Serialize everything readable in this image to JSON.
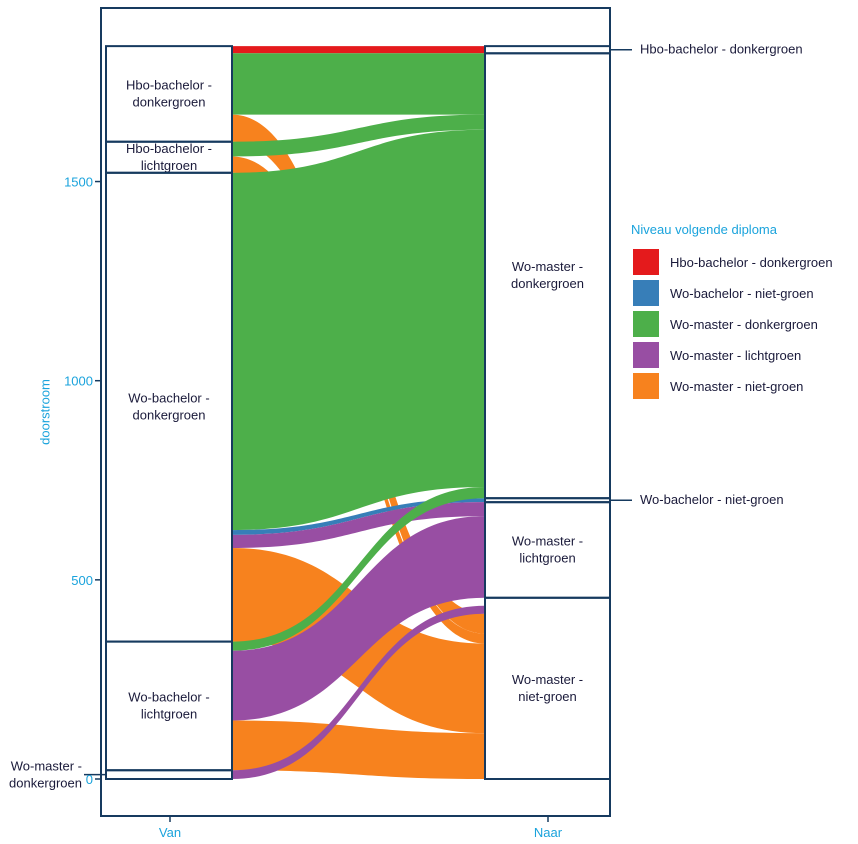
{
  "chart_data": {
    "type": "alluvial",
    "ylabel": "doorstroom",
    "x_axes": [
      "Van",
      "Naar"
    ],
    "yticks": [
      0,
      500,
      1000,
      1500
    ],
    "ylim": [
      -80,
      1910
    ],
    "legend": {
      "title": "Niveau volgende diploma",
      "position": "right",
      "entries": [
        {
          "label": "Hbo-bachelor - donkergroen",
          "color": "#e41a1c"
        },
        {
          "label": "Wo-bachelor - niet-groen",
          "color": "#377eb8"
        },
        {
          "label": "Wo-master - donkergroen",
          "color": "#4daf4a"
        },
        {
          "label": "Wo-master - lichtgroen",
          "color": "#984ea3"
        },
        {
          "label": "Wo-master - niet-groen",
          "color": "#f7821e"
        }
      ]
    },
    "left_strata": [
      {
        "id": "hd",
        "label": "Hbo-bachelor - donkergroen",
        "label_lines": [
          "Hbo-bachelor -",
          "donkergroen"
        ],
        "low": 1600,
        "high": 1840,
        "external": false
      },
      {
        "id": "hl",
        "label": "Hbo-bachelor - lichtgroen",
        "label_lines": [
          "Hbo-bachelor -",
          "lichtgroen"
        ],
        "low": 1522,
        "high": 1600,
        "external": false
      },
      {
        "id": "wd",
        "label": "Wo-bachelor - donkergroen",
        "label_lines": [
          "Wo-bachelor -",
          "donkergroen"
        ],
        "low": 345,
        "high": 1522,
        "external": false
      },
      {
        "id": "wl",
        "label": "Wo-bachelor - lichtgroen",
        "label_lines": [
          "Wo-bachelor -",
          "lichtgroen"
        ],
        "low": 22,
        "high": 345,
        "external": false
      },
      {
        "id": "md",
        "label": "Wo-master - donkergroen",
        "label_lines": [
          "Wo-master -",
          "donkergroen"
        ],
        "low": 0,
        "high": 22,
        "external": true
      }
    ],
    "right_strata": [
      {
        "id": "rh",
        "label": "Hbo-bachelor - donkergroen",
        "label_lines": [
          "Hbo-bachelor - donkergroen"
        ],
        "low": 1822,
        "high": 1840,
        "external": true
      },
      {
        "id": "rm",
        "label": "Wo-master - donkergroen",
        "label_lines": [
          "Wo-master -",
          "donkergroen"
        ],
        "low": 705,
        "high": 1822,
        "external": false
      },
      {
        "id": "rb",
        "label": "Wo-bachelor - niet-groen",
        "label_lines": [
          "Wo-bachelor - niet-groen"
        ],
        "low": 695,
        "high": 705,
        "external": true
      },
      {
        "id": "rl",
        "label": "Wo-master - lichtgroen",
        "label_lines": [
          "Wo-master -",
          "lichtgroen"
        ],
        "low": 455,
        "high": 695,
        "external": false
      },
      {
        "id": "rn",
        "label": "Wo-master - niet-groen",
        "label_lines": [
          "Wo-master -",
          "niet-groen"
        ],
        "low": 0,
        "high": 455,
        "external": false
      }
    ],
    "flows": [
      {
        "from": "Hbo-bachelor - donkergroen",
        "to": "Hbo-bachelor - donkergroen",
        "color": "#e41a1c",
        "from_low": 1822,
        "from_high": 1840,
        "to_low": 1822,
        "to_high": 1840
      },
      {
        "from": "Hbo-bachelor - donkergroen",
        "to": "Wo-master - donkergroen",
        "color": "#4daf4a",
        "from_low": 1668,
        "from_high": 1822,
        "to_low": 1668,
        "to_high": 1822
      },
      {
        "from": "Hbo-bachelor - donkergroen",
        "to": "Wo-master - niet-groen",
        "color": "#f7821e",
        "from_low": 1600,
        "from_high": 1668,
        "to_low": 365,
        "to_high": 415
      },
      {
        "from": "Hbo-bachelor - lichtgroen",
        "to": "Wo-master - donkergroen",
        "color": "#4daf4a",
        "from_low": 1563,
        "from_high": 1600,
        "to_low": 1630,
        "to_high": 1668
      },
      {
        "from": "Hbo-bachelor - lichtgroen",
        "to": "Wo-master - niet-groen",
        "color": "#f7821e",
        "from_low": 1522,
        "from_high": 1563,
        "to_low": 340,
        "to_high": 365
      },
      {
        "from": "Wo-bachelor - donkergroen",
        "to": "Wo-master - donkergroen",
        "color": "#4daf4a",
        "from_low": 625,
        "from_high": 1522,
        "to_low": 733,
        "to_high": 1630
      },
      {
        "from": "Wo-bachelor - donkergroen",
        "to": "Wo-bachelor - niet-groen",
        "color": "#377eb8",
        "from_low": 613,
        "from_high": 625,
        "to_low": 695,
        "to_high": 705
      },
      {
        "from": "Wo-bachelor - donkergroen",
        "to": "Wo-master - lichtgroen",
        "color": "#984ea3",
        "from_low": 580,
        "from_high": 613,
        "to_low": 660,
        "to_high": 695
      },
      {
        "from": "Wo-bachelor - donkergroen",
        "to": "Wo-master - niet-groen",
        "color": "#f7821e",
        "from_low": 345,
        "from_high": 580,
        "to_low": 115,
        "to_high": 340
      },
      {
        "from": "Wo-bachelor - lichtgroen",
        "to": "Wo-master - donkergroen",
        "color": "#4daf4a",
        "from_low": 322,
        "from_high": 345,
        "to_low": 705,
        "to_high": 733
      },
      {
        "from": "Wo-bachelor - lichtgroen",
        "to": "Wo-master - lichtgroen",
        "color": "#984ea3",
        "from_low": 147,
        "from_high": 322,
        "to_low": 455,
        "to_high": 660
      },
      {
        "from": "Wo-bachelor - lichtgroen",
        "to": "Wo-master - niet-groen",
        "color": "#f7821e",
        "from_low": 22,
        "from_high": 147,
        "to_low": 0,
        "to_high": 115
      },
      {
        "from": "Wo-master - donkergroen",
        "to": "Wo-master - lichtgroen",
        "color": "#984ea3",
        "from_low": 0,
        "from_high": 22,
        "to_low": 415,
        "to_high": 435
      }
    ]
  }
}
